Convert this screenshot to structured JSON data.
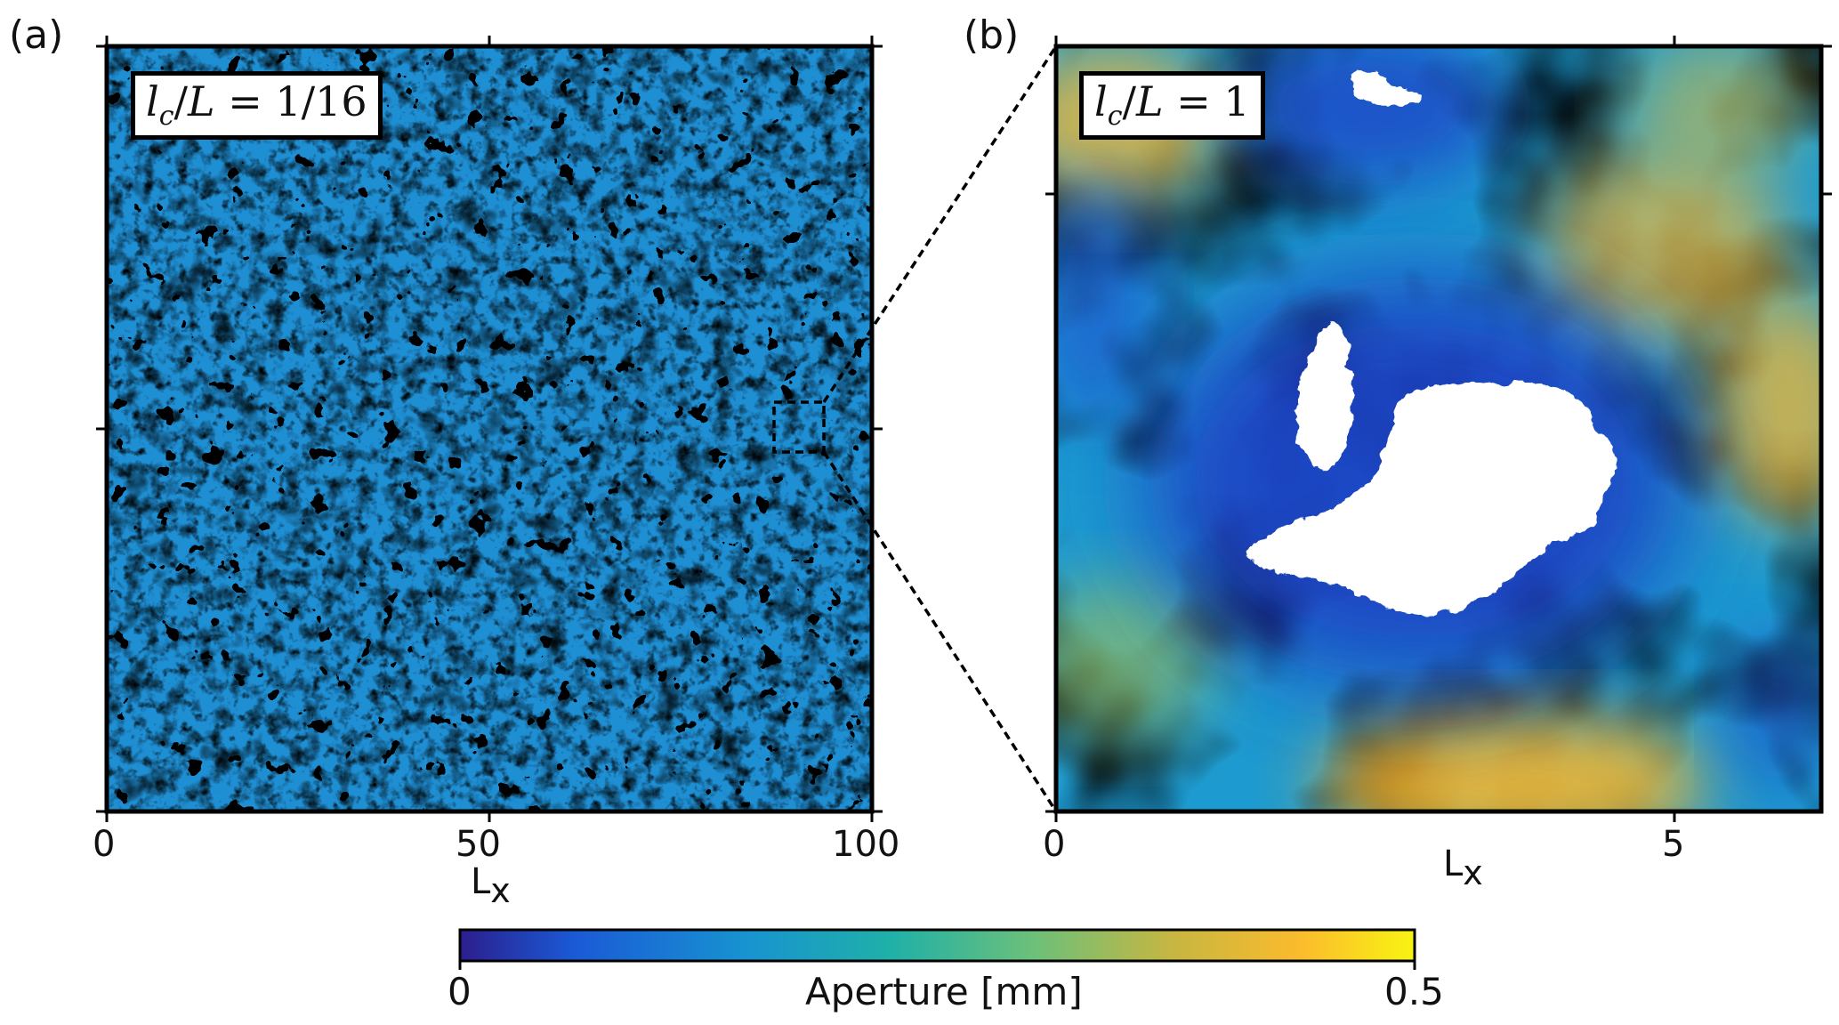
{
  "panels": [
    {
      "label": "(a)",
      "annotation": {
        "prefix_lc": "l",
        "prefix_sub": "c",
        "over": "/L = ",
        "value": "1/16"
      },
      "x_axis_label": "L",
      "x_axis_sub": "x",
      "x_ticks": [
        "0",
        "50",
        "100"
      ]
    },
    {
      "label": "(b)",
      "annotation": {
        "prefix_lc": "l",
        "prefix_sub": "c",
        "over": "/L = ",
        "value": "1"
      },
      "x_axis_label": "L",
      "x_axis_sub": "x",
      "x_ticks": [
        "0",
        "5"
      ]
    }
  ],
  "colorbar": {
    "label": "Aperture [mm]",
    "min_label": "0",
    "max_label": "0.5",
    "min": 0,
    "max": 0.5,
    "colormap": [
      "#2c1e8c",
      "#1a5ad6",
      "#1893d0",
      "#1fb0a8",
      "#6cc07a",
      "#c8b640",
      "#fbbb2d",
      "#f8f412"
    ]
  }
}
